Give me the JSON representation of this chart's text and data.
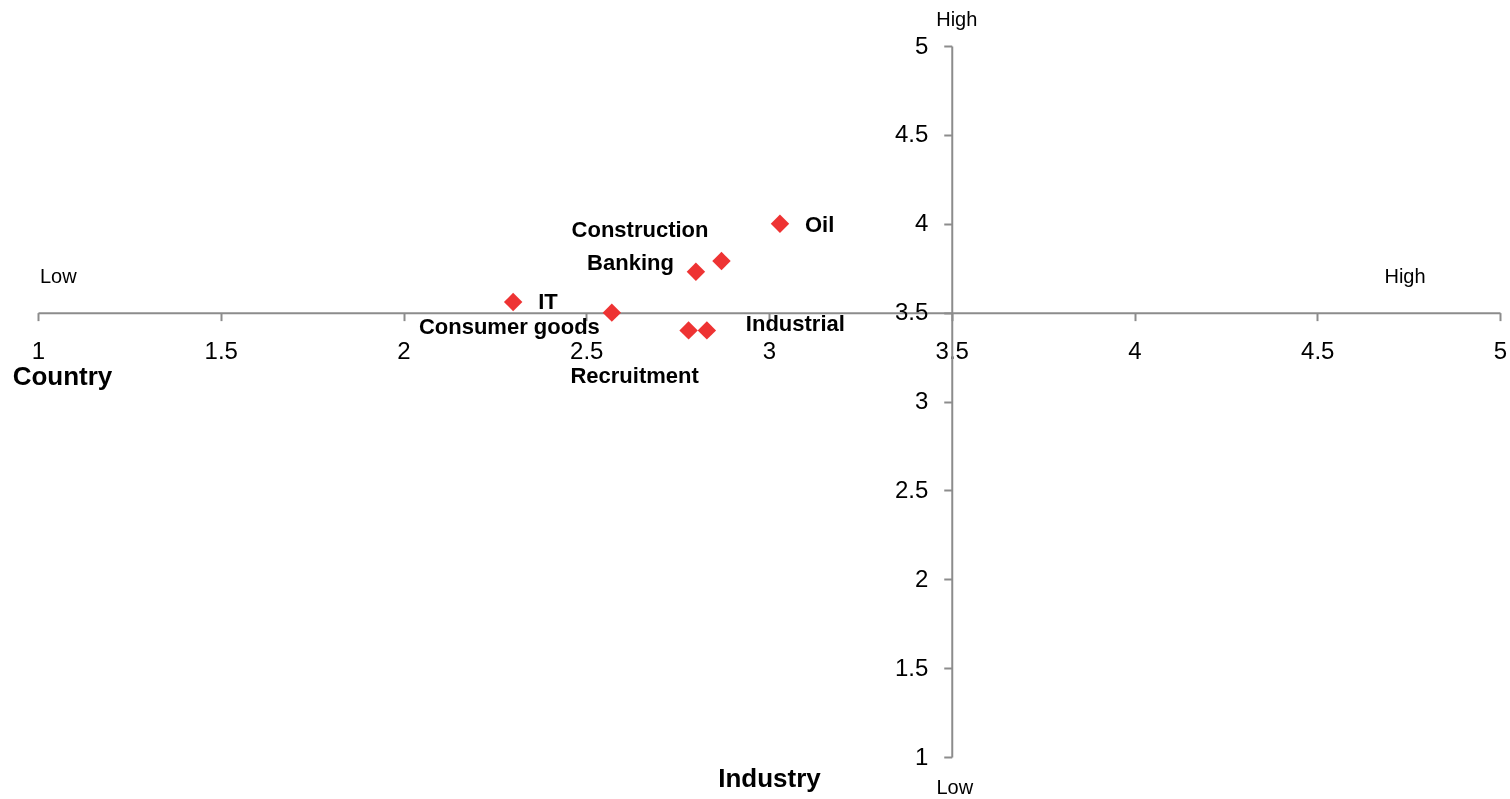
{
  "chart_data": {
    "type": "scatter",
    "xlabel": "Industry",
    "ylabel": "Country",
    "x": [
      3.03,
      2.87,
      2.8,
      2.3,
      2.57,
      2.78,
      2.83
    ],
    "values": [
      4.0,
      3.79,
      3.73,
      3.56,
      3.5,
      3.4,
      3.4
    ],
    "color": "#ee3333",
    "marker": "diamond",
    "xlim": [
      1,
      5
    ],
    "ylim": [
      1,
      5
    ],
    "xticks": [
      1,
      1.5,
      2,
      2.5,
      3,
      3.5,
      4,
      4.5,
      5
    ],
    "yticks": [
      1,
      1.5,
      2,
      2.5,
      3,
      3.5,
      4,
      4.5,
      5
    ],
    "grid": false,
    "annotations": [
      "Low",
      "High",
      "High",
      "Low",
      {
        "text": "Oil",
        "x": 3.03,
        "y": 4.0
      },
      {
        "text": "Construction",
        "x": 2.87,
        "y": 3.79
      },
      {
        "text": "Banking",
        "x": 2.8,
        "y": 3.73
      },
      {
        "text": "IT",
        "x": 2.3,
        "y": 3.56
      },
      {
        "text": "Consumer goods",
        "x": 2.57,
        "y": 3.5
      },
      {
        "text": "Recruitment",
        "x": 2.78,
        "y": 3.4
      },
      {
        "text": "Industrial",
        "x": 2.83,
        "y": 3.4
      }
    ]
  }
}
